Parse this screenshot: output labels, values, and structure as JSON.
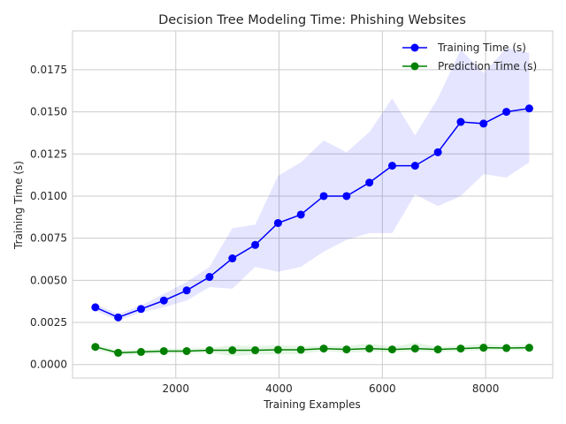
{
  "chart_data": {
    "type": "line",
    "title": "Decision Tree Modeling Time: Phishing Websites",
    "xlabel": "Training Examples",
    "ylabel": "Training Time (s)",
    "xlim": [
      0,
      9300
    ],
    "ylim": [
      -0.0008,
      0.0198
    ],
    "xticks": [
      2000,
      4000,
      6000,
      8000
    ],
    "xtick_labels": [
      "2000",
      "4000",
      "6000",
      "8000"
    ],
    "yticks": [
      0.0,
      0.0025,
      0.005,
      0.0075,
      0.01,
      0.0125,
      0.015,
      0.0175
    ],
    "ytick_labels": [
      "0.0000",
      "0.0025",
      "0.0050",
      "0.0075",
      "0.0100",
      "0.0125",
      "0.0150",
      "0.0175"
    ],
    "grid": true,
    "legend_position": "top-right",
    "x": [
      442,
      884,
      1327,
      1769,
      2211,
      2653,
      3096,
      3538,
      3980,
      4422,
      4865,
      5307,
      5749,
      6191,
      6634,
      7076,
      7518,
      7960,
      8403,
      8845
    ],
    "series": [
      {
        "name": "Training Time (s)",
        "color": "#0000ff",
        "band_color": "#0000ff",
        "values": [
          0.0034,
          0.0028,
          0.0033,
          0.0038,
          0.0044,
          0.0052,
          0.0063,
          0.0071,
          0.0084,
          0.0089,
          0.01,
          0.01,
          0.0108,
          0.0118,
          0.0118,
          0.0126,
          0.0144,
          0.0143,
          0.015,
          0.0152
        ],
        "lower": [
          0.0032,
          0.0026,
          0.0031,
          0.0034,
          0.0038,
          0.0046,
          0.0045,
          0.0058,
          0.0055,
          0.0058,
          0.0067,
          0.0074,
          0.0078,
          0.0078,
          0.0101,
          0.0094,
          0.01,
          0.0113,
          0.0111,
          0.012
        ],
        "upper": [
          0.0036,
          0.003,
          0.0035,
          0.0042,
          0.0049,
          0.0058,
          0.0081,
          0.0083,
          0.0112,
          0.012,
          0.0133,
          0.0126,
          0.0138,
          0.0158,
          0.0136,
          0.0158,
          0.0187,
          0.0173,
          0.0188,
          0.0185
        ]
      },
      {
        "name": "Prediction Time (s)",
        "color": "#008000",
        "band_color": "#00a000",
        "values": [
          0.00105,
          0.0007,
          0.00075,
          0.0008,
          0.0008,
          0.00085,
          0.00085,
          0.00085,
          0.00088,
          0.00088,
          0.00095,
          0.0009,
          0.00095,
          0.0009,
          0.00095,
          0.0009,
          0.00095,
          0.001,
          0.00098,
          0.001
        ],
        "lower": [
          0.0009,
          0.00055,
          0.0006,
          0.00065,
          0.00065,
          0.0007,
          0.0005,
          0.0006,
          0.0006,
          0.00065,
          0.0008,
          0.0007,
          0.00075,
          0.00075,
          0.0008,
          0.00075,
          0.0008,
          0.00085,
          0.00085,
          0.00085
        ],
        "upper": [
          0.0012,
          0.00085,
          0.0009,
          0.00095,
          0.00095,
          0.001,
          0.00115,
          0.0011,
          0.00115,
          0.0011,
          0.0011,
          0.0011,
          0.00125,
          0.00105,
          0.0013,
          0.00105,
          0.0011,
          0.00125,
          0.0011,
          0.0012
        ]
      }
    ]
  }
}
